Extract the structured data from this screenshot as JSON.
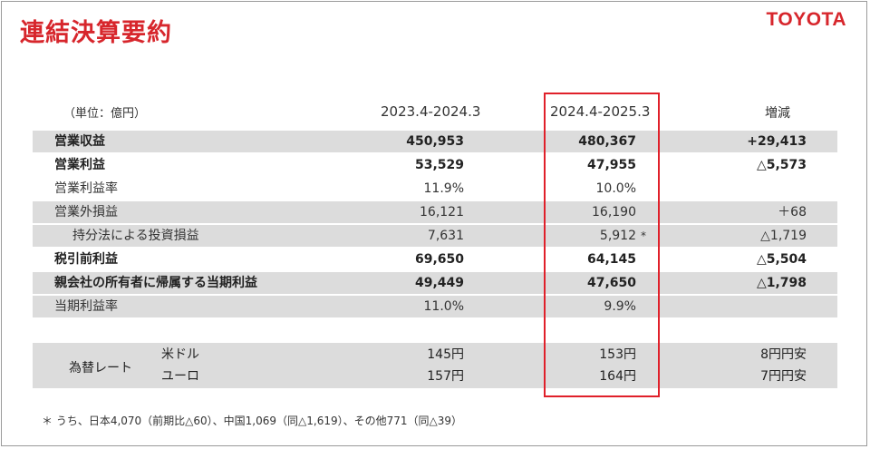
{
  "header": {
    "title": "連結決算要約",
    "logo": "TOYOTA"
  },
  "columns": {
    "unit": "（単位：億円）",
    "prev": "2023.4-2024.3",
    "curr": "2024.4-2025.3",
    "diff": "増減"
  },
  "rows": [
    {
      "label": "営業収益",
      "prev": "450,953",
      "curr": "480,367",
      "diff": "+29,413"
    },
    {
      "label": "営業利益",
      "prev": "53,529",
      "curr": "47,955",
      "diff": "△5,573"
    },
    {
      "label": "営業利益率",
      "prev": "11.9%",
      "curr": "10.0%",
      "diff": ""
    },
    {
      "label": "営業外損益",
      "prev": "16,121",
      "curr": "16,190",
      "diff": "＋68"
    },
    {
      "label": "持分法による投資損益",
      "prev": "7,631",
      "curr": "5,912",
      "mark": "*",
      "diff": "△1,719"
    },
    {
      "label": "税引前利益",
      "prev": "69,650",
      "curr": "64,145",
      "diff": "△5,504"
    },
    {
      "label": "親会社の所有者に帰属する当期利益",
      "prev": "49,449",
      "curr": "47,650",
      "diff": "△1,798"
    },
    {
      "label": "当期利益率",
      "prev": "11.0%",
      "curr": "9.9%",
      "diff": ""
    }
  ],
  "fx": {
    "label": "為替レート",
    "items": [
      {
        "currency": "米ドル",
        "prev": "145円",
        "curr": "153円",
        "diff": "8円円安"
      },
      {
        "currency": "ユーロ",
        "prev": "157円",
        "curr": "164円",
        "diff": "7円円安"
      }
    ]
  },
  "footnote": "＊ うち、日本4,070（前期比△60）、中国1,069（同△1,619）、その他771（同△39）"
}
